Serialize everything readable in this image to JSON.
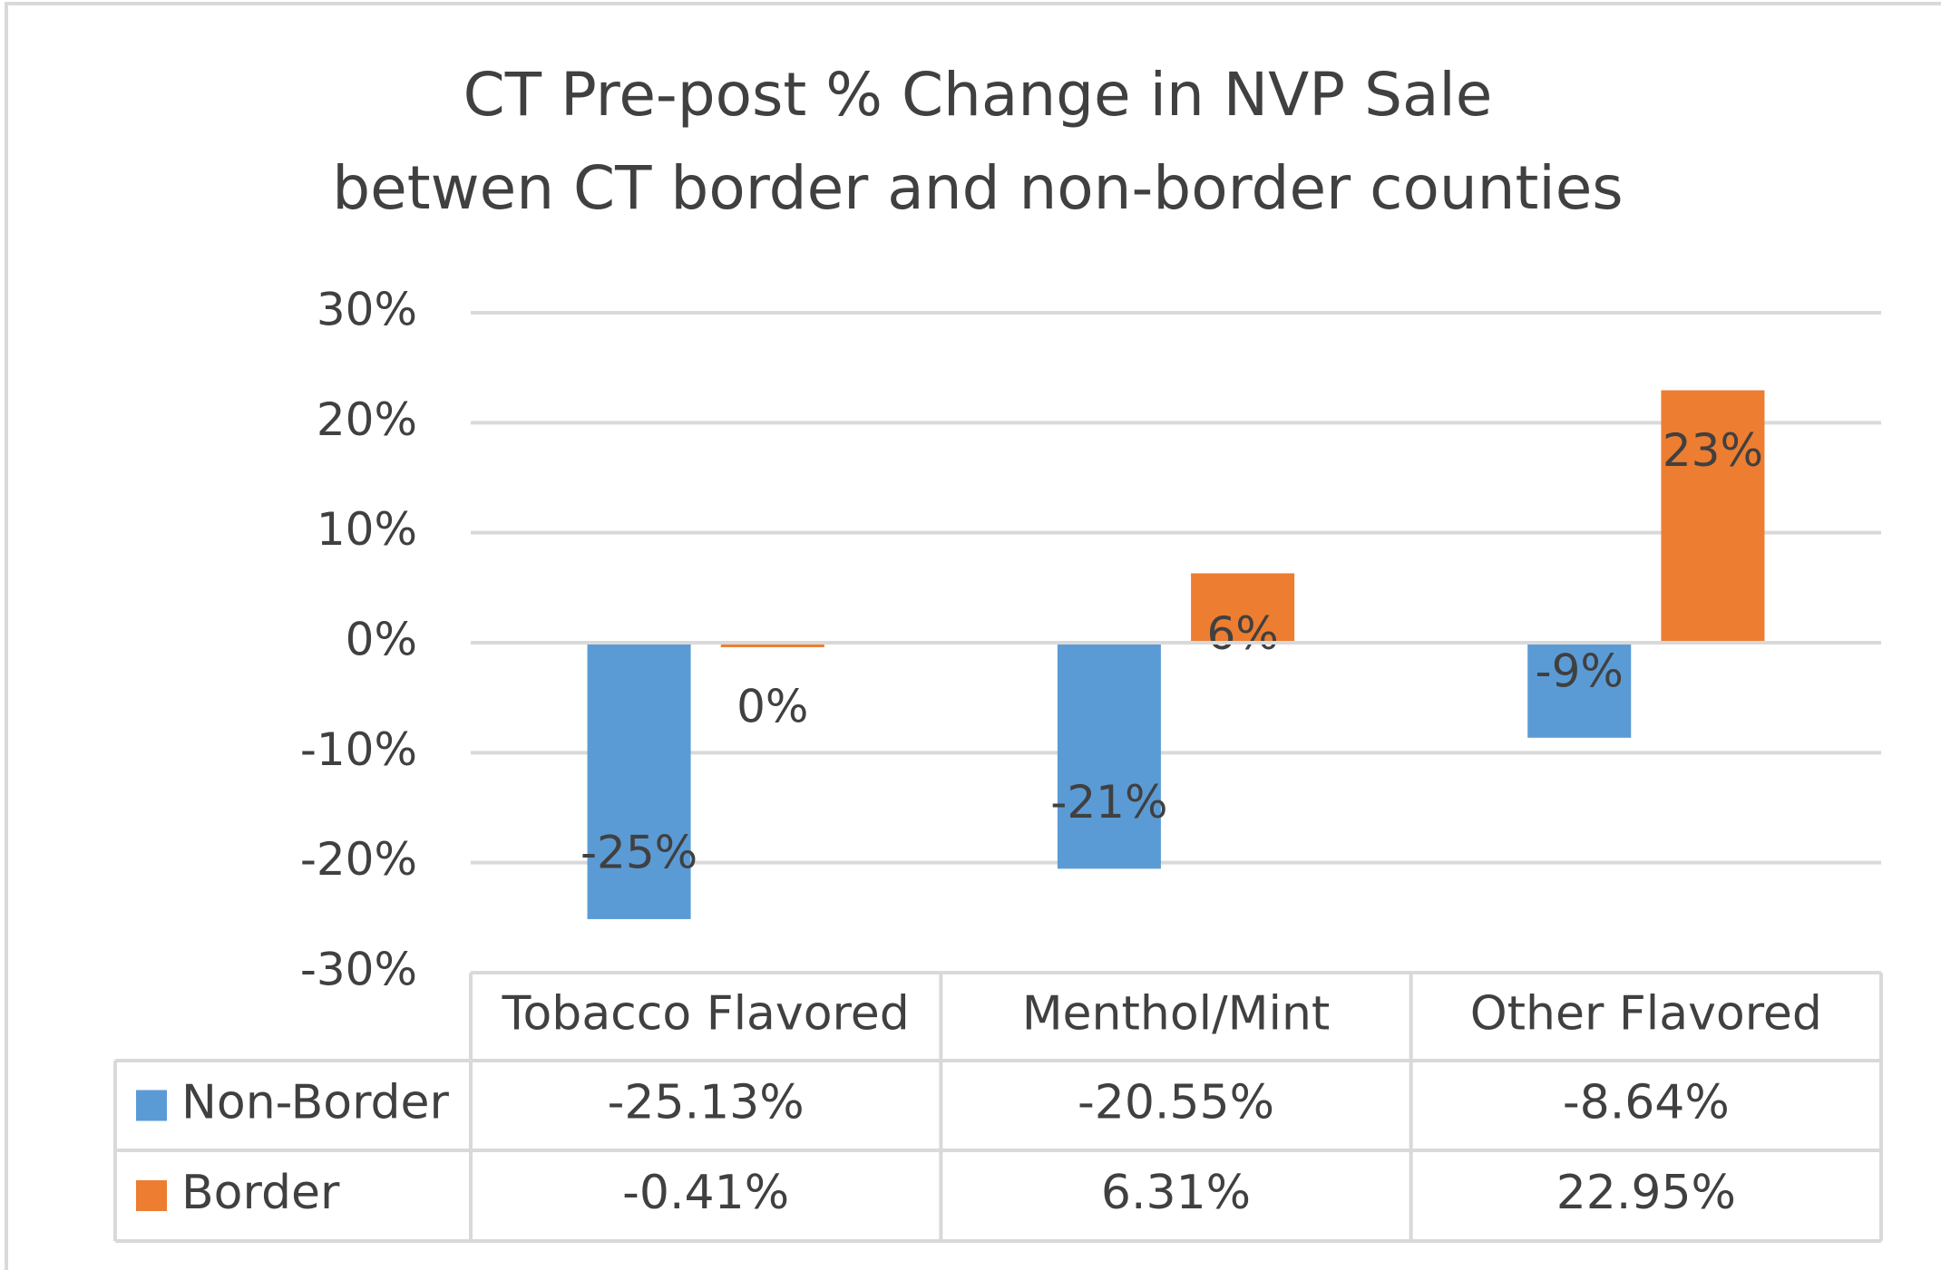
{
  "chart_data": {
    "type": "bar",
    "title": "CT Pre-post % Change in NVP Sale",
    "subtitle": "betwen CT border and non-border counties",
    "categories": [
      "Tobacco Flavored",
      "Menthol/Mint",
      "Other Flavored"
    ],
    "series": [
      {
        "name": "Non-Border",
        "color": "#5b9bd5",
        "values": [
          -25.13,
          -20.55,
          -8.64
        ],
        "value_labels": [
          "-25%",
          "-21%",
          "-9%"
        ],
        "table_labels": [
          "-25.13%",
          "-20.55%",
          "-8.64%"
        ]
      },
      {
        "name": "Border",
        "color": "#ed7d31",
        "values": [
          -0.41,
          6.31,
          22.95
        ],
        "value_labels": [
          "0%",
          "6%",
          "23%"
        ],
        "table_labels": [
          "-0.41%",
          "6.31%",
          "22.95%"
        ]
      }
    ],
    "ylim": [
      -30,
      30
    ],
    "yticks": [
      {
        "value": -30,
        "label": "-30%"
      },
      {
        "value": -20,
        "label": "-20%"
      },
      {
        "value": -10,
        "label": "-10%"
      },
      {
        "value": 0,
        "label": "0%"
      },
      {
        "value": 10,
        "label": "10%"
      },
      {
        "value": 20,
        "label": "20%"
      },
      {
        "value": 30,
        "label": "30%"
      }
    ],
    "grid": true
  }
}
